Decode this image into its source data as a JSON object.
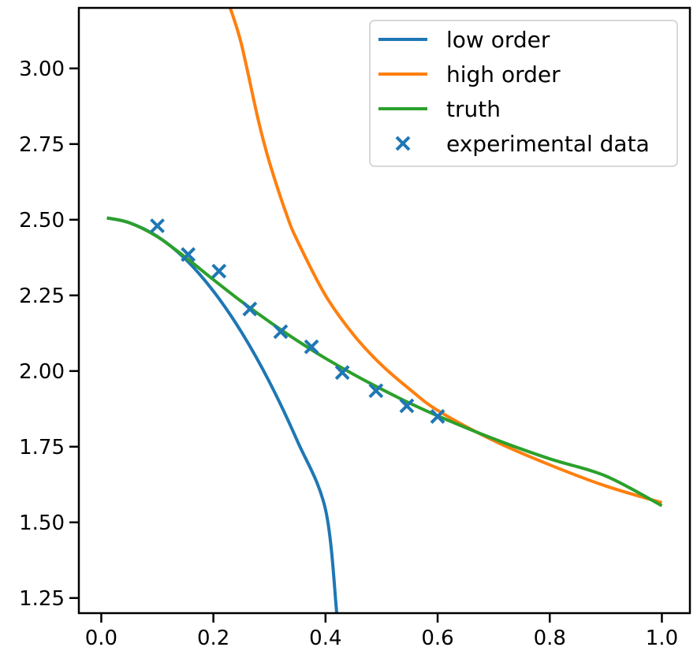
{
  "chart_data": {
    "type": "line",
    "title": "",
    "xlabel": "",
    "ylabel": "",
    "xlim": [
      -0.04,
      1.05
    ],
    "ylim": [
      1.2,
      3.2
    ],
    "grid": false,
    "legend_position": "upper right",
    "x_ticks": [
      {
        "value": 0.0,
        "label": "0.0"
      },
      {
        "value": 0.2,
        "label": "0.2"
      },
      {
        "value": 0.4,
        "label": "0.4"
      },
      {
        "value": 0.6,
        "label": "0.6"
      },
      {
        "value": 0.8,
        "label": "0.8"
      },
      {
        "value": 1.0,
        "label": "1.0"
      }
    ],
    "y_ticks": [
      {
        "value": 1.25,
        "label": "1.25"
      },
      {
        "value": 1.5,
        "label": "1.50"
      },
      {
        "value": 1.75,
        "label": "1.75"
      },
      {
        "value": 2.0,
        "label": "2.00"
      },
      {
        "value": 2.25,
        "label": "2.25"
      },
      {
        "value": 2.5,
        "label": "2.50"
      },
      {
        "value": 2.75,
        "label": "2.75"
      },
      {
        "value": 3.0,
        "label": "3.00"
      }
    ],
    "series": [
      {
        "name": "low order",
        "kind": "line",
        "color": "#1f77b4",
        "x": [
          0.01,
          0.05,
          0.1,
          0.15,
          0.2,
          0.25,
          0.3,
          0.35,
          0.4,
          0.42
        ],
        "y": [
          2.506,
          2.49,
          2.445,
          2.37,
          2.264,
          2.129,
          1.964,
          1.768,
          1.543,
          1.2
        ]
      },
      {
        "name": "high order",
        "kind": "line",
        "color": "#ff7f0e",
        "x": [
          0.23,
          0.25,
          0.28,
          0.3,
          0.33,
          0.35,
          0.4,
          0.45,
          0.5,
          0.55,
          0.6,
          0.7,
          0.8,
          0.9,
          1.0
        ],
        "y": [
          3.2,
          3.08,
          2.83,
          2.69,
          2.52,
          2.43,
          2.25,
          2.12,
          2.02,
          1.94,
          1.87,
          1.77,
          1.69,
          1.62,
          1.565
        ]
      },
      {
        "name": "truth",
        "kind": "line",
        "color": "#2ca02c",
        "x": [
          0.01,
          0.05,
          0.1,
          0.15,
          0.2,
          0.25,
          0.3,
          0.35,
          0.4,
          0.45,
          0.5,
          0.55,
          0.6,
          0.7,
          0.8,
          0.9,
          1.0
        ],
        "y": [
          2.506,
          2.49,
          2.444,
          2.376,
          2.302,
          2.23,
          2.163,
          2.1,
          2.042,
          1.989,
          1.94,
          1.894,
          1.852,
          1.776,
          1.71,
          1.653,
          1.555
        ]
      },
      {
        "name": "experimental data",
        "kind": "scatter",
        "marker": "x",
        "color": "#1f77b4",
        "x": [
          0.1,
          0.155,
          0.21,
          0.265,
          0.32,
          0.375,
          0.43,
          0.49,
          0.545,
          0.6
        ],
        "y": [
          2.48,
          2.385,
          2.33,
          2.205,
          2.13,
          2.08,
          1.995,
          1.935,
          1.885,
          1.85
        ]
      }
    ]
  }
}
